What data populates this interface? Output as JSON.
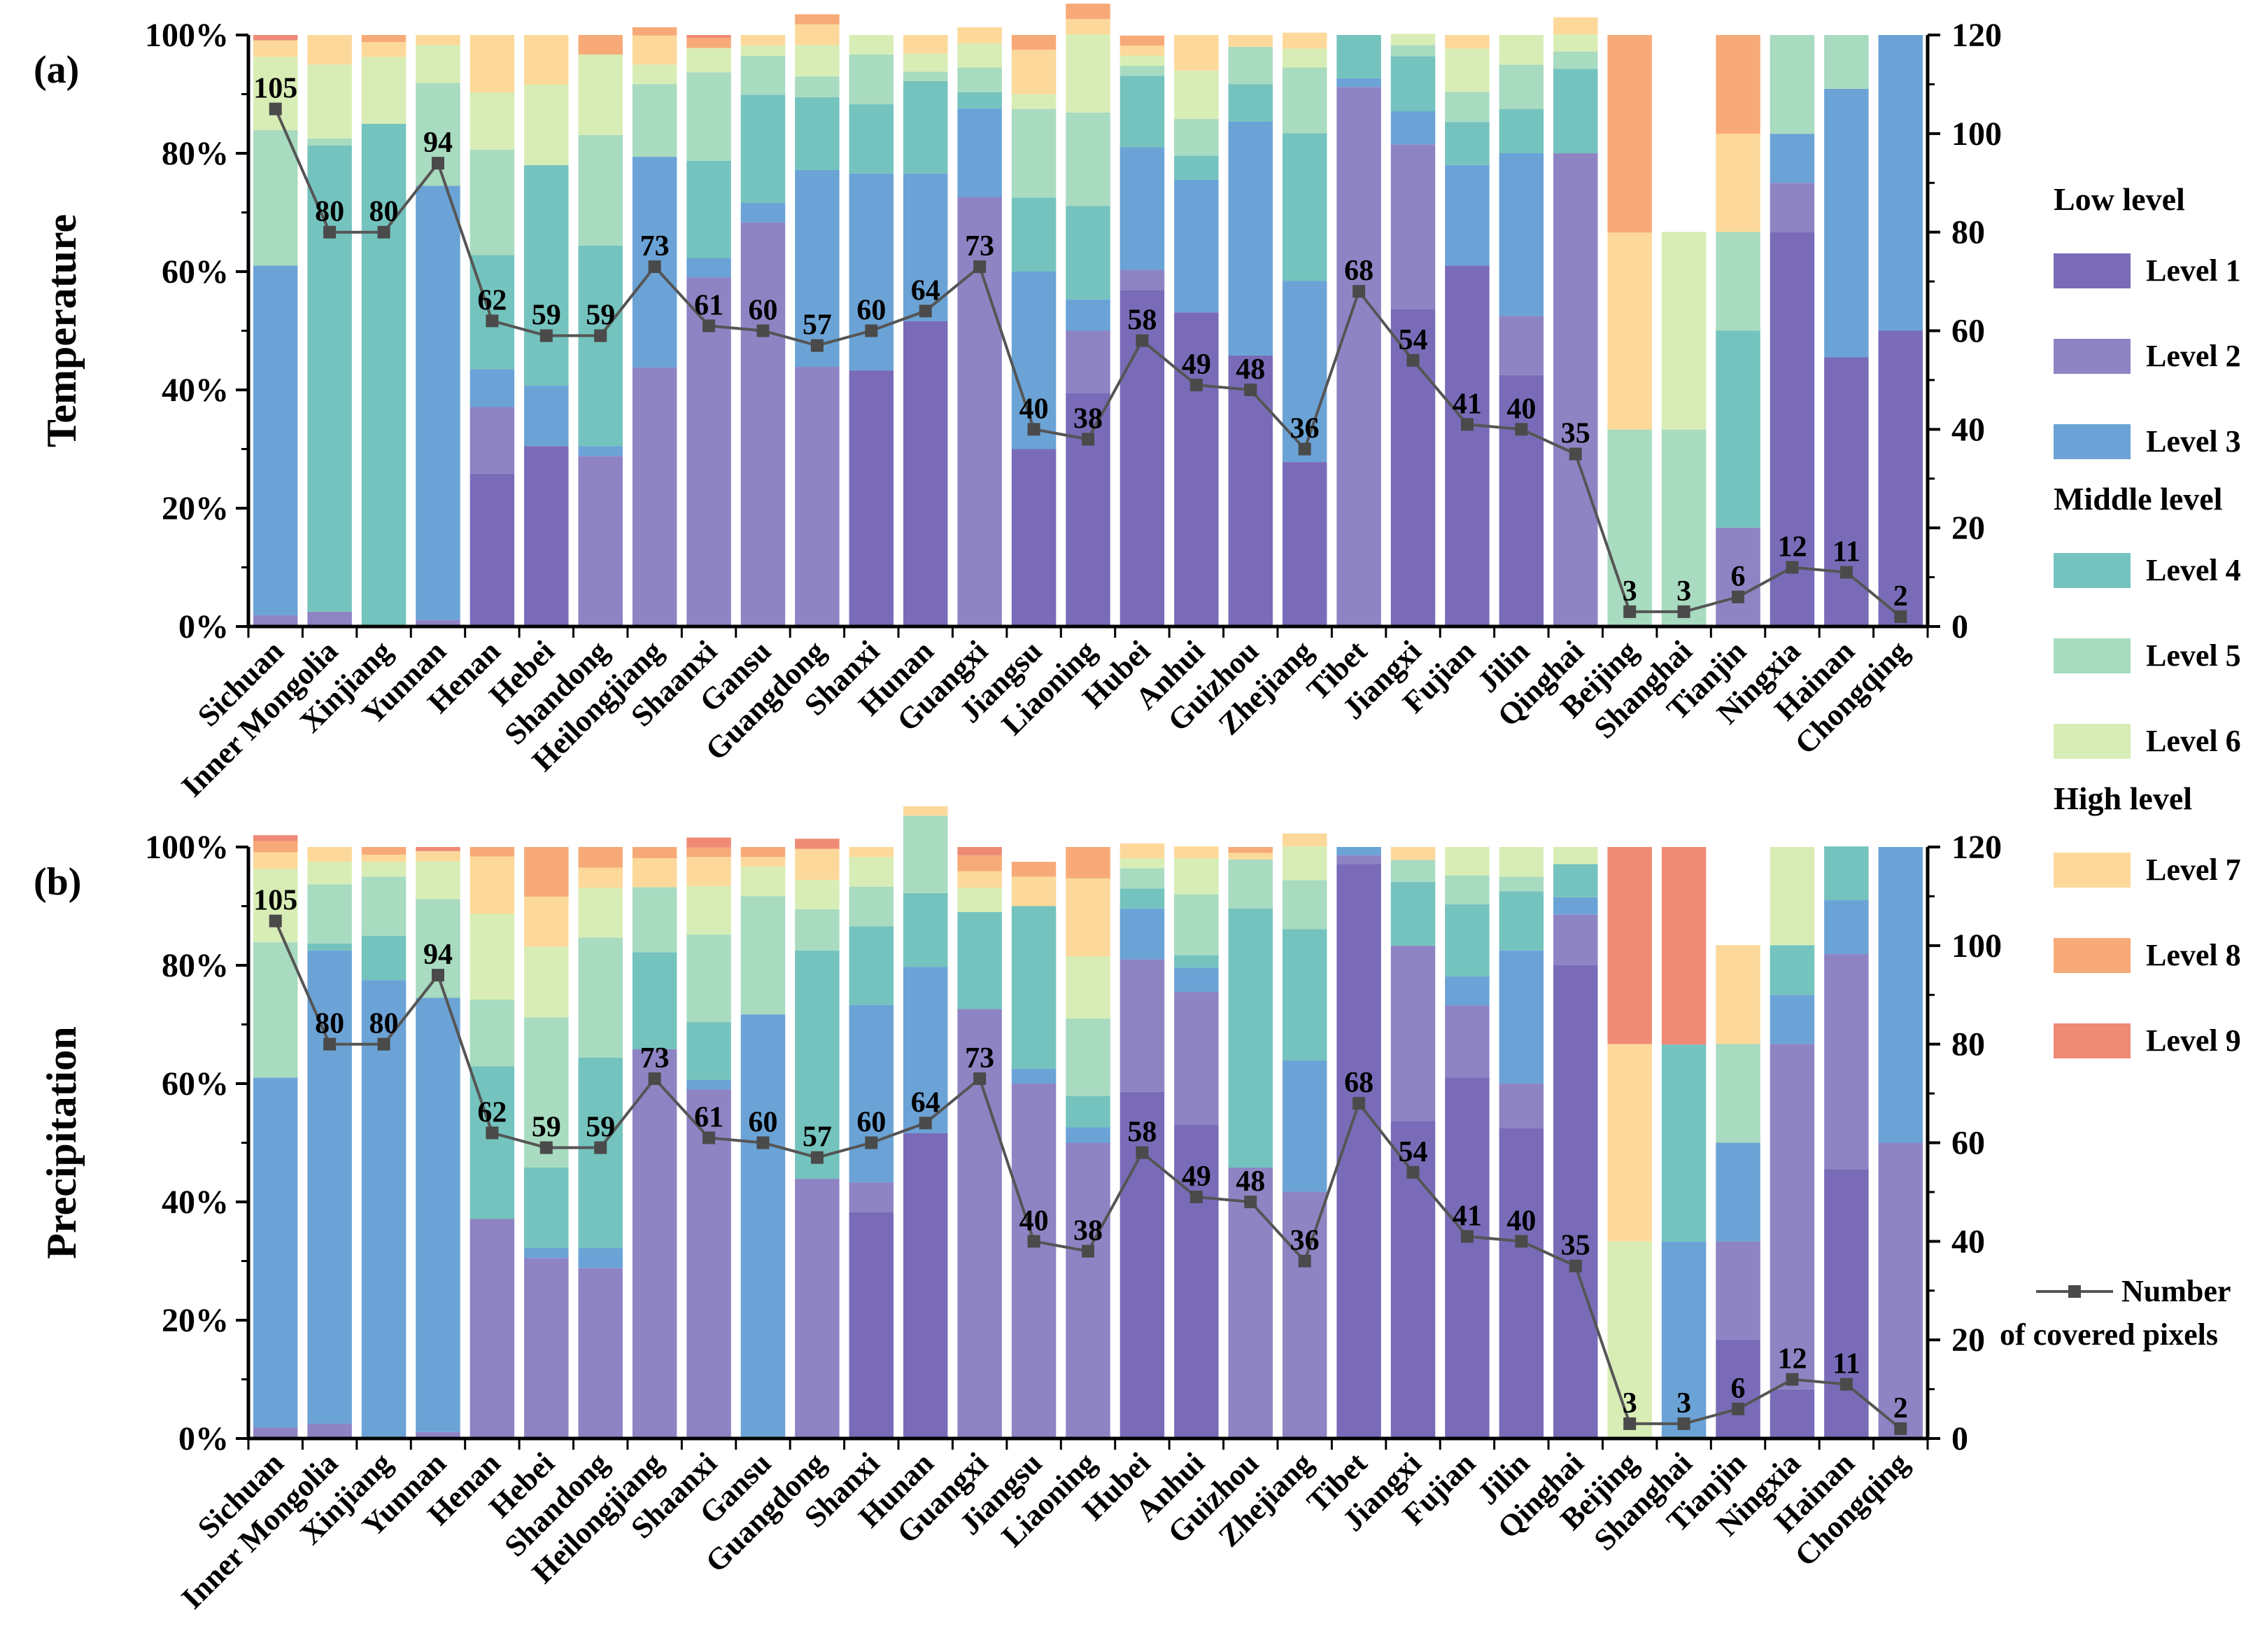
{
  "chart_data": [
    {
      "type": "bar",
      "stacked": true,
      "panel_label": "(a)",
      "ylabel": "Temperature",
      "ylim_left": [
        0,
        100
      ],
      "yticks_left": [
        "0%",
        "20%",
        "40%",
        "60%",
        "80%",
        "100%"
      ],
      "ylim_right": [
        0,
        120
      ],
      "yticks_right": [
        "0",
        "20",
        "40",
        "60",
        "80",
        "100",
        "120"
      ],
      "categories": [
        "Sichuan",
        "Inner Mongolia",
        "Xinjiang",
        "Yunnan",
        "Henan",
        "Hebei",
        "Shandong",
        "Heilongjiang",
        "Shaanxi",
        "Gansu",
        "Guangdong",
        "Shanxi",
        "Hunan",
        "Guangxi",
        "Jiangsu",
        "Liaoning",
        "Hubei",
        "Anhui",
        "Guizhou",
        "Zhejiang",
        "Tibet",
        "Jiangxi",
        "Fujian",
        "Jilin",
        "Qinghai",
        "Beijing",
        "Shanghai",
        "Tianjin",
        "Ningxia",
        "Hainan",
        "Chongqing"
      ],
      "series": [
        {
          "name": "Level 1",
          "values": [
            0,
            0,
            0,
            0,
            25.8,
            30.5,
            0,
            0,
            0,
            0,
            0,
            43.3,
            51.6,
            0,
            30,
            39.5,
            56.9,
            53.1,
            45.8,
            27.8,
            0,
            53.7,
            61,
            42.5,
            0,
            0,
            0,
            0,
            66.7,
            45.5,
            50
          ]
        },
        {
          "name": "Level 2",
          "values": [
            1.9,
            2.5,
            0,
            1.1,
            11.3,
            0,
            28.8,
            43.8,
            59,
            68.3,
            43.9,
            0,
            0,
            72.6,
            0,
            10.5,
            3.4,
            0,
            0,
            0,
            91.2,
            27.8,
            0,
            10,
            80,
            0,
            0,
            16.7,
            8.3,
            0,
            0
          ]
        },
        {
          "name": "Level 3",
          "values": [
            59.1,
            0,
            0,
            73.4,
            6.4,
            10.2,
            1.7,
            35.6,
            3.3,
            3.3,
            33.3,
            33.3,
            25,
            15,
            30,
            5.3,
            20.7,
            22.4,
            39.6,
            30.6,
            1.5,
            5.6,
            17,
            27.5,
            0,
            0,
            0,
            0,
            8.3,
            45.4,
            50
          ]
        },
        {
          "name": "Level 4",
          "values": [
            0,
            78.8,
            85,
            0,
            19.3,
            37.3,
            33.9,
            0,
            16.4,
            18.3,
            12.3,
            11.7,
            15.6,
            2.7,
            12.5,
            15.8,
            12.1,
            4.1,
            6.3,
            25,
            7.3,
            9.3,
            7.3,
            7.5,
            14.3,
            0,
            0,
            33.3,
            0,
            0,
            0
          ]
        },
        {
          "name": "Level 5",
          "values": [
            22.9,
            1.2,
            0,
            17.4,
            17.8,
            0,
            18.7,
            12.3,
            15,
            6.6,
            3.5,
            8.4,
            1.6,
            4.2,
            15,
            15.8,
            1.7,
            6.2,
            6.3,
            11.1,
            0,
            1.9,
            5.1,
            7.5,
            2.9,
            33.3,
            33.3,
            16.7,
            16.7,
            9.1,
            0
          ]
        },
        {
          "name": "Level 6",
          "values": [
            12.4,
            12.5,
            11.3,
            6.4,
            9.7,
            13.6,
            13.6,
            3.3,
            4.1,
            1.7,
            5.3,
            3.3,
            3.1,
            4.1,
            2.5,
            13.2,
            1.7,
            8.2,
            0,
            3.2,
            0,
            1.9,
            7.3,
            5,
            2.9,
            0,
            33.4,
            0,
            0,
            0,
            0
          ]
        },
        {
          "name": "Level 7",
          "values": [
            2.8,
            5,
            2.5,
            1.7,
            9.7,
            8.4,
            0,
            4.9,
            0,
            1.8,
            3.5,
            0,
            3.1,
            2.7,
            7.5,
            2.6,
            1.7,
            6,
            2,
            2.7,
            0,
            0,
            2.3,
            0,
            2.9,
            33.3,
            0,
            16.6,
            0,
            0,
            0
          ]
        },
        {
          "name": "Level 8",
          "values": [
            0,
            0,
            1.2,
            0,
            0,
            0,
            3.3,
            1.4,
            1.7,
            0,
            1.7,
            0,
            0,
            0,
            2.5,
            2.6,
            1.7,
            0,
            0,
            0,
            0,
            0,
            0,
            0,
            0,
            33.4,
            0,
            16.7,
            0,
            0,
            0
          ]
        },
        {
          "name": "Level 9",
          "values": [
            0.9,
            0,
            0,
            0,
            0,
            0,
            0,
            0,
            0.5,
            0,
            0,
            0,
            0,
            0,
            0,
            0,
            0,
            0,
            0,
            0,
            0,
            0,
            0,
            0,
            0,
            0,
            0,
            0,
            0,
            0,
            0
          ]
        }
      ],
      "line": {
        "name": "Number of covered pixels",
        "axis": "right",
        "values": [
          105,
          80,
          80,
          94,
          62,
          59,
          59,
          73,
          61,
          60,
          57,
          60,
          64,
          73,
          40,
          38,
          58,
          49,
          48,
          36,
          68,
          54,
          41,
          40,
          35,
          3,
          3,
          6,
          12,
          11,
          2
        ]
      }
    },
    {
      "type": "bar",
      "stacked": true,
      "panel_label": "(b)",
      "ylabel": "Precipitation",
      "ylim_left": [
        0,
        100
      ],
      "yticks_left": [
        "0%",
        "20%",
        "40%",
        "60%",
        "80%",
        "100%"
      ],
      "ylim_right": [
        0,
        120
      ],
      "yticks_right": [
        "0",
        "20",
        "40",
        "60",
        "80",
        "100",
        "120"
      ],
      "categories": [
        "Sichuan",
        "Inner Mongolia",
        "Xinjiang",
        "Yunnan",
        "Henan",
        "Hebei",
        "Shandong",
        "Heilongjiang",
        "Shaanxi",
        "Gansu",
        "Guangdong",
        "Shanxi",
        "Hunan",
        "Guangxi",
        "Jiangsu",
        "Liaoning",
        "Hubei",
        "Anhui",
        "Guizhou",
        "Zhejiang",
        "Tibet",
        "Jiangxi",
        "Fujian",
        "Jilin",
        "Qinghai",
        "Beijing",
        "Shanghai",
        "Tianjin",
        "Ningxia",
        "Hainan",
        "Chongqing"
      ],
      "series": [
        {
          "name": "Level 1",
          "values": [
            0,
            0,
            0,
            0,
            0,
            0,
            0,
            0,
            0,
            0,
            0,
            38.3,
            51.6,
            0,
            0,
            0,
            58.6,
            53.1,
            0,
            0,
            97.1,
            53.7,
            61,
            52.5,
            80,
            0,
            0,
            16.7,
            8.3,
            45.5,
            0
          ]
        },
        {
          "name": "Level 2",
          "values": [
            1.9,
            2.5,
            0,
            1.1,
            37.1,
            30.5,
            28.8,
            65.8,
            59,
            0,
            43.9,
            5,
            0,
            72.6,
            60,
            50,
            22.4,
            22.4,
            45.8,
            41.7,
            1.5,
            29.6,
            12.2,
            7.5,
            8.6,
            0,
            0,
            16.6,
            58.4,
            36.4,
            50
          ]
        },
        {
          "name": "Level 3",
          "values": [
            59.1,
            80,
            77.5,
            73.4,
            0,
            1.7,
            3.4,
            0,
            1.6,
            71.7,
            0,
            30,
            28.1,
            0,
            2.5,
            2.6,
            8.6,
            4.1,
            0,
            22.2,
            1.4,
            0,
            4.9,
            22.5,
            2.9,
            0,
            33.3,
            16.7,
            8.3,
            9.1,
            50
          ]
        },
        {
          "name": "Level 4",
          "values": [
            0,
            1.2,
            7.5,
            0,
            25.8,
            13.6,
            32.2,
            16.4,
            9.8,
            0,
            38.6,
            13.3,
            12.5,
            16.4,
            27.5,
            5.3,
            3.4,
            2.1,
            43.8,
            22.2,
            0,
            10.8,
            12.2,
            10,
            5.6,
            0,
            33.3,
            0,
            8.4,
            9.1,
            0
          ]
        },
        {
          "name": "Level 5",
          "values": [
            22.9,
            10,
            10,
            16.7,
            11.3,
            25.4,
            20.3,
            11,
            14.8,
            20,
            7,
            6.7,
            13.1,
            0,
            0,
            13.1,
            3.4,
            10.3,
            8.3,
            8.3,
            0,
            3.7,
            4.9,
            2.5,
            0,
            0,
            0,
            16.7,
            0,
            0,
            0
          ]
        },
        {
          "name": "Level 6",
          "values": [
            12.4,
            3.8,
            2.5,
            6.4,
            14.5,
            11.9,
            8.4,
            0,
            8.2,
            5,
            4.9,
            5,
            0,
            4.1,
            0,
            10.5,
            1.7,
            6.1,
            0,
            5.7,
            0,
            0,
            4.8,
            5,
            2.9,
            33.3,
            0,
            0,
            16.6,
            0,
            0
          ]
        },
        {
          "name": "Level 7",
          "values": [
            2.8,
            2.5,
            1.2,
            1.7,
            9.7,
            8.5,
            3.4,
            4.9,
            4.9,
            1.6,
            5.3,
            1.7,
            1.6,
            2.8,
            5,
            13.2,
            2.5,
            2,
            1.1,
            2.2,
            0,
            2.2,
            0,
            0,
            0,
            33.4,
            0,
            16.7,
            0,
            0,
            0
          ]
        },
        {
          "name": "Level 8",
          "values": [
            1.9,
            0,
            1.3,
            0,
            1.6,
            8.4,
            3.5,
            1.9,
            1.6,
            1.7,
            0,
            0,
            0,
            2.7,
            2.5,
            5.3,
            0,
            0,
            1,
            0,
            0,
            0,
            0,
            0,
            0,
            0,
            0,
            0,
            0,
            0,
            0
          ]
        },
        {
          "name": "Level 9",
          "values": [
            1,
            0,
            0,
            0.7,
            0,
            0,
            0,
            0,
            1.7,
            0,
            1.7,
            0,
            0,
            1.4,
            0,
            0,
            0,
            0,
            0,
            0,
            0,
            0,
            0,
            0,
            0,
            33.3,
            33.4,
            0,
            0,
            0,
            0
          ]
        }
      ],
      "line": {
        "name": "Number of covered pixels",
        "axis": "right",
        "values": [
          105,
          80,
          80,
          94,
          62,
          59,
          59,
          73,
          61,
          60,
          57,
          60,
          64,
          73,
          40,
          38,
          58,
          49,
          48,
          36,
          68,
          54,
          41,
          40,
          35,
          3,
          3,
          6,
          12,
          11,
          2
        ]
      }
    }
  ],
  "legend": {
    "groups": [
      {
        "heading": "Low level",
        "items": [
          "Level 1",
          "Level 2",
          "Level 3"
        ]
      },
      {
        "heading": "Middle level",
        "items": [
          "Level 4",
          "Level 5",
          "Level 6"
        ]
      },
      {
        "heading": "High level",
        "items": [
          "Level 7",
          "Level 8",
          "Level 9"
        ]
      }
    ],
    "line_label_1": "Number",
    "line_label_2": "of covered pixels"
  },
  "colors": {
    "Level 1": "#7A6BB8",
    "Level 2": "#8E84C4",
    "Level 3": "#6BA3D6",
    "Level 4": "#74C3BE",
    "Level 5": "#A8DBC0",
    "Level 6": "#D8EDB5",
    "Level 7": "#FCD99B",
    "Level 8": "#F7AA78",
    "Level 9": "#EE8A76",
    "line": "#555555",
    "marker": "#4a4a4a"
  }
}
